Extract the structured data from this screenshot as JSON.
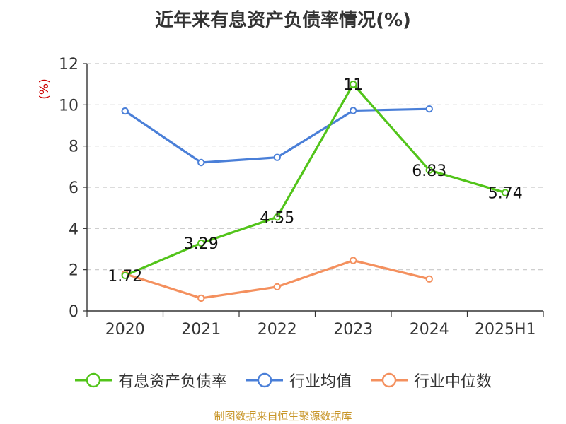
{
  "chart_data": {
    "type": "line",
    "title": "近年来有息资产负债率情况(%)",
    "ylabel": "(%)",
    "xlabel": "",
    "categories": [
      "2020",
      "2021",
      "2022",
      "2023",
      "2024",
      "2025H1"
    ],
    "ylim": [
      0,
      12
    ],
    "yticks": [
      "0",
      "2",
      "4",
      "6",
      "8",
      "10",
      "12"
    ],
    "grid": true,
    "legend_position": "bottom",
    "series": [
      {
        "name": "有息资产负债率",
        "color": "#52c41a",
        "values": [
          1.72,
          3.29,
          4.55,
          11,
          6.83,
          5.74
        ],
        "labels": [
          "1.72",
          "3.29",
          "4.55",
          "11",
          "6.83",
          "5.74"
        ]
      },
      {
        "name": "行业均值",
        "color": "#4a7fd8",
        "values": [
          9.7,
          7.2,
          7.45,
          9.72,
          9.8,
          null
        ]
      },
      {
        "name": "行业中位数",
        "color": "#f4905e",
        "values": [
          1.8,
          0.62,
          1.17,
          2.45,
          1.55,
          null
        ]
      }
    ]
  },
  "footer": {
    "source": "制图数据来自恒生聚源数据库"
  }
}
